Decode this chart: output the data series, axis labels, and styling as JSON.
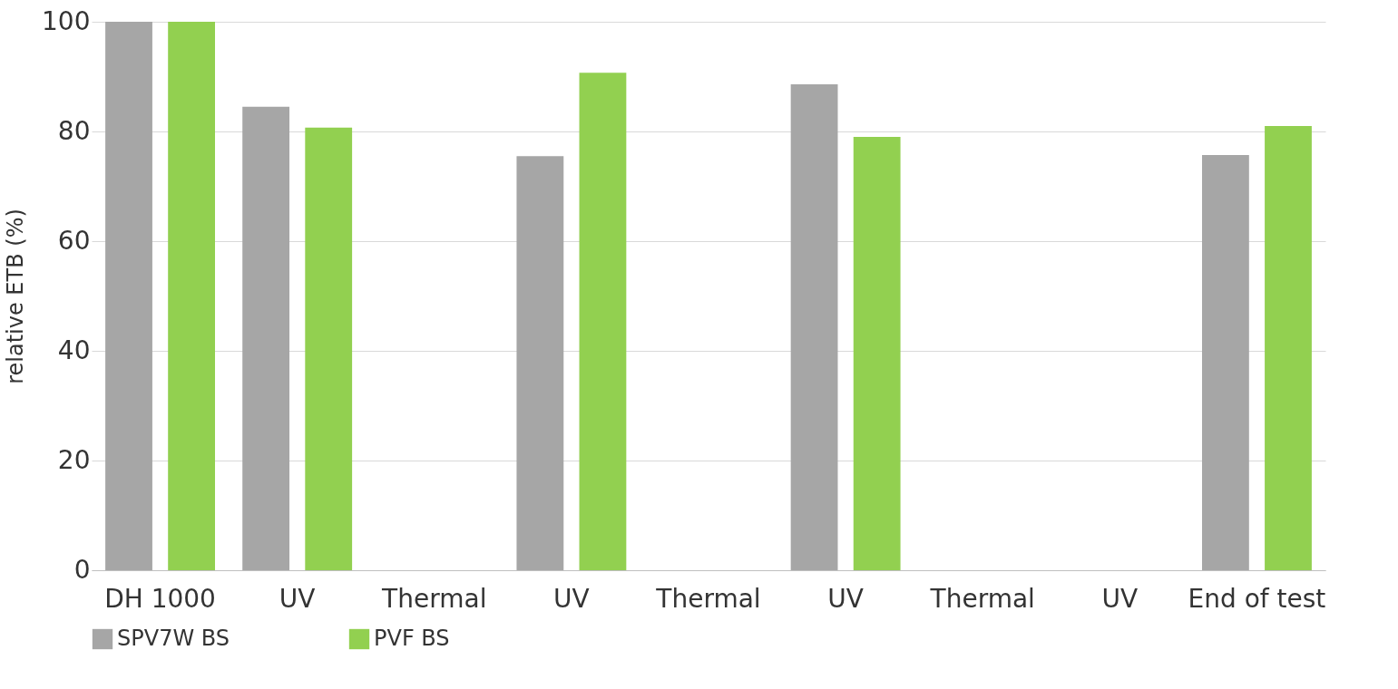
{
  "chart_data": {
    "type": "bar",
    "ylabel": "relative ETB (%)",
    "categories": [
      "DH 1000",
      "UV",
      "Thermal",
      "UV",
      "Thermal",
      "UV",
      "Thermal",
      "UV",
      "End of test"
    ],
    "series": [
      {
        "name": "SPV7W BS",
        "color": "#a6a6a6",
        "values": [
          100,
          84.5,
          null,
          75.5,
          null,
          88.6,
          null,
          null,
          75.7
        ]
      },
      {
        "name": "PVF BS",
        "color": "#92d050",
        "values": [
          100,
          80.7,
          null,
          90.7,
          null,
          79.0,
          null,
          null,
          81.0
        ]
      }
    ],
    "ylim": [
      0,
      100
    ],
    "yticks": [
      0,
      20,
      40,
      60,
      80,
      100
    ],
    "grid": "y",
    "legend": "bottom"
  }
}
